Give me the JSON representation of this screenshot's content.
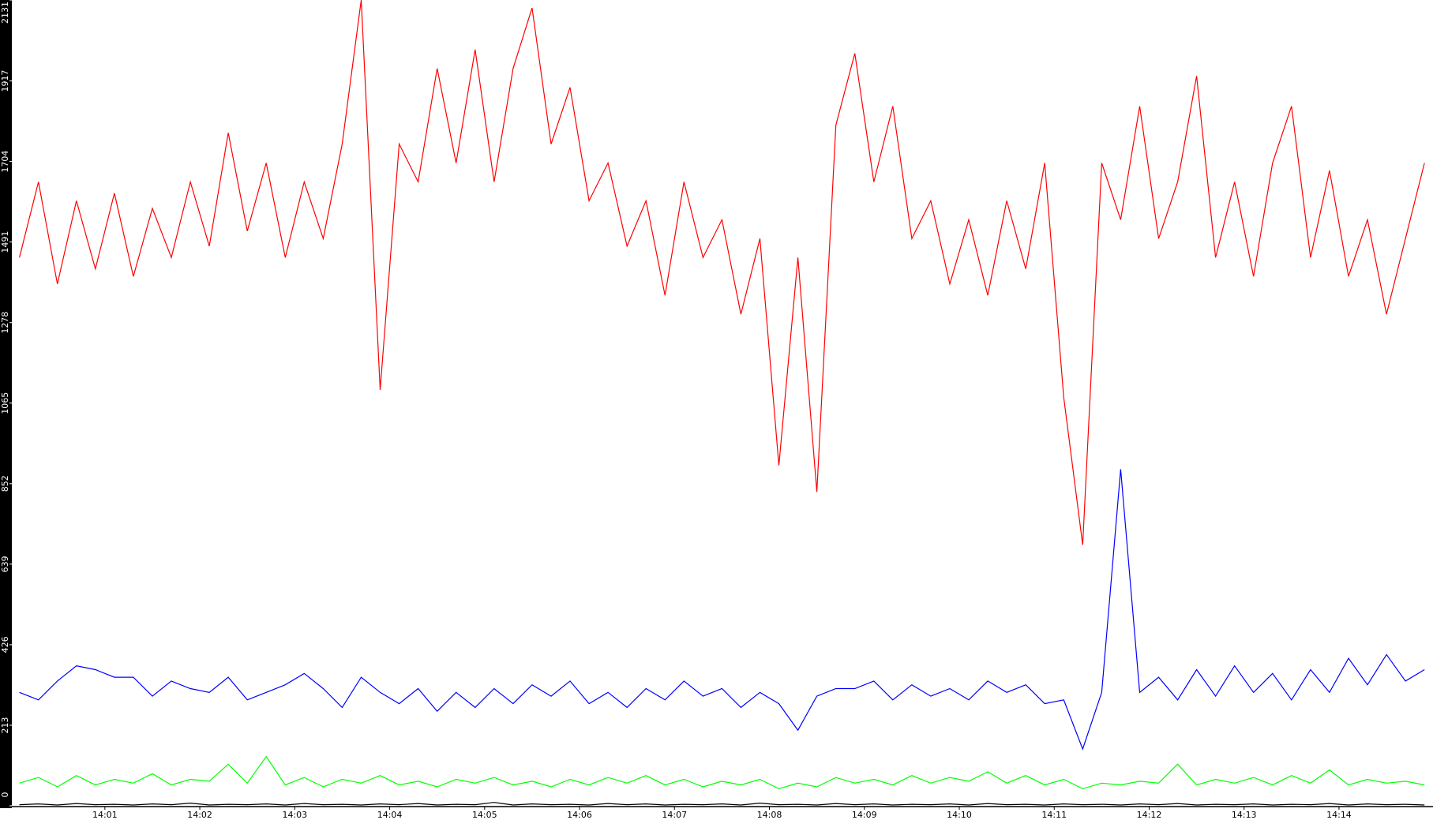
{
  "chart_data": {
    "type": "line",
    "x": [
      0.1,
      0.3,
      0.5,
      0.7,
      0.9,
      1.1,
      1.3,
      1.5,
      1.7,
      1.9,
      2.1,
      2.3,
      2.5,
      2.7,
      2.9,
      3.1,
      3.3,
      3.5,
      3.7,
      3.9,
      4.1,
      4.3,
      4.5,
      4.7,
      4.9,
      5.1,
      5.3,
      5.5,
      5.7,
      5.9,
      6.1,
      6.3,
      6.5,
      6.7,
      6.9,
      7.1,
      7.3,
      7.5,
      7.7,
      7.9,
      8.1,
      8.3,
      8.5,
      8.7,
      8.9,
      9.1,
      9.3,
      9.5,
      9.7,
      9.9,
      10.1,
      10.3,
      10.5,
      10.7,
      10.9,
      11.1,
      11.3,
      11.5,
      11.7,
      11.9,
      12.1,
      12.3,
      12.5,
      12.7,
      12.9,
      13.1,
      13.3,
      13.5,
      13.7,
      13.9,
      14.1,
      14.3,
      14.5,
      14.7,
      14.9
    ],
    "series": [
      {
        "color": "#ff0000",
        "values": [
          1450,
          1650,
          1380,
          1600,
          1420,
          1620,
          1400,
          1580,
          1450,
          1650,
          1480,
          1780,
          1520,
          1700,
          1450,
          1650,
          1500,
          1750,
          2131,
          1100,
          1750,
          1650,
          1950,
          1700,
          2000,
          1650,
          1950,
          2110,
          1750,
          1900,
          1600,
          1700,
          1480,
          1600,
          1350,
          1650,
          1450,
          1550,
          1300,
          1500,
          900,
          1450,
          830,
          1800,
          1990,
          1650,
          1850,
          1500,
          1600,
          1380,
          1550,
          1350,
          1600,
          1420,
          1700,
          1080,
          690,
          1700,
          1550,
          1850,
          1500,
          1650,
          1930,
          1450,
          1650,
          1400,
          1700,
          1850,
          1450,
          1680,
          1400,
          1550,
          1300,
          1500,
          1700
        ]
      },
      {
        "color": "#0000ff",
        "values": [
          300,
          280,
          330,
          370,
          360,
          340,
          340,
          290,
          330,
          310,
          300,
          340,
          280,
          300,
          320,
          350,
          310,
          260,
          340,
          300,
          270,
          310,
          250,
          300,
          260,
          310,
          270,
          320,
          290,
          330,
          270,
          300,
          260,
          310,
          280,
          330,
          290,
          310,
          260,
          300,
          270,
          200,
          290,
          310,
          310,
          330,
          280,
          320,
          290,
          310,
          280,
          330,
          300,
          320,
          270,
          280,
          150,
          300,
          890,
          300,
          340,
          280,
          360,
          290,
          370,
          300,
          350,
          280,
          360,
          300,
          390,
          320,
          400,
          330,
          360
        ]
      },
      {
        "color": "#00ff00",
        "values": [
          60,
          75,
          50,
          80,
          55,
          70,
          60,
          85,
          55,
          70,
          65,
          110,
          60,
          130,
          55,
          75,
          50,
          70,
          60,
          80,
          55,
          65,
          50,
          70,
          60,
          75,
          55,
          65,
          50,
          70,
          55,
          75,
          60,
          80,
          55,
          70,
          50,
          65,
          55,
          70,
          45,
          60,
          50,
          75,
          60,
          70,
          55,
          80,
          60,
          75,
          65,
          90,
          60,
          80,
          55,
          70,
          45,
          60,
          55,
          65,
          60,
          110,
          55,
          70,
          60,
          75,
          55,
          80,
          60,
          95,
          55,
          70,
          60,
          65,
          55
        ]
      },
      {
        "color": "#000000",
        "values": [
          3,
          5,
          2,
          6,
          3,
          4,
          2,
          5,
          3,
          7,
          2,
          4,
          3,
          5,
          2,
          6,
          3,
          4,
          2,
          5,
          3,
          6,
          2,
          4,
          3,
          9,
          2,
          5,
          3,
          4,
          2,
          6,
          3,
          5,
          2,
          4,
          3,
          5,
          2,
          7,
          3,
          4,
          2,
          6,
          3,
          5,
          2,
          4,
          3,
          5,
          2,
          6,
          3,
          4,
          2,
          5,
          3,
          4,
          2,
          5,
          3,
          6,
          2,
          4,
          3,
          5,
          2,
          4,
          3,
          6,
          2,
          5,
          3,
          4,
          2
        ]
      }
    ],
    "xlim": [
      0.02,
      14.99
    ],
    "xticks": [
      {
        "value": 1,
        "label": "14:01"
      },
      {
        "value": 2,
        "label": "14:02"
      },
      {
        "value": 3,
        "label": "14:03"
      },
      {
        "value": 4,
        "label": "14:04"
      },
      {
        "value": 5,
        "label": "14:05"
      },
      {
        "value": 6,
        "label": "14:06"
      },
      {
        "value": 7,
        "label": "14:07"
      },
      {
        "value": 8,
        "label": "14:08"
      },
      {
        "value": 9,
        "label": "14:09"
      },
      {
        "value": 10,
        "label": "14:10"
      },
      {
        "value": 11,
        "label": "14:11"
      },
      {
        "value": 12,
        "label": "14:12"
      },
      {
        "value": 13,
        "label": "14:13"
      },
      {
        "value": 14,
        "label": "14:14"
      }
    ],
    "ylim": [
      0,
      2131
    ],
    "yticks": [
      0,
      213,
      426,
      639,
      852,
      1065,
      1278,
      1491,
      1704,
      1917,
      2131
    ],
    "grid": false
  }
}
